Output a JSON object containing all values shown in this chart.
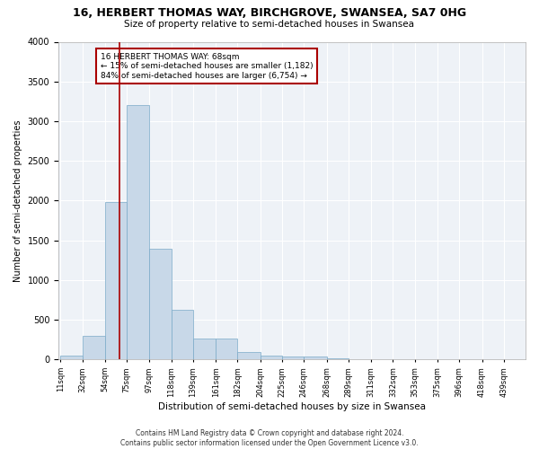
{
  "title": "16, HERBERT THOMAS WAY, BIRCHGROVE, SWANSEA, SA7 0HG",
  "subtitle": "Size of property relative to semi-detached houses in Swansea",
  "xlabel": "Distribution of semi-detached houses by size in Swansea",
  "ylabel": "Number of semi-detached properties",
  "footer_line1": "Contains HM Land Registry data © Crown copyright and database right 2024.",
  "footer_line2": "Contains public sector information licensed under the Open Government Licence v3.0.",
  "annotation_line1": "16 HERBERT THOMAS WAY: 68sqm",
  "annotation_line2": "← 15% of semi-detached houses are smaller (1,182)",
  "annotation_line3": "84% of semi-detached houses are larger (6,754) →",
  "property_size": 68,
  "bar_color": "#c8d8e8",
  "bar_edge_color": "#7aaac8",
  "vline_color": "#aa0000",
  "annotation_box_color": "#aa0000",
  "background_color": "#eef2f7",
  "grid_color": "#ffffff",
  "categories": [
    "11sqm",
    "32sqm",
    "54sqm",
    "75sqm",
    "97sqm",
    "118sqm",
    "139sqm",
    "161sqm",
    "182sqm",
    "204sqm",
    "225sqm",
    "246sqm",
    "268sqm",
    "289sqm",
    "311sqm",
    "332sqm",
    "353sqm",
    "375sqm",
    "396sqm",
    "418sqm",
    "439sqm"
  ],
  "bin_edges": [
    11,
    32,
    54,
    75,
    97,
    118,
    139,
    161,
    182,
    204,
    225,
    246,
    268,
    289,
    311,
    332,
    353,
    375,
    396,
    418,
    439,
    460
  ],
  "values": [
    50,
    300,
    1980,
    3200,
    1390,
    630,
    260,
    260,
    95,
    55,
    35,
    35,
    18,
    8,
    4,
    4,
    2,
    2,
    2,
    2,
    2
  ],
  "ylim": [
    0,
    4000
  ],
  "yticks": [
    0,
    500,
    1000,
    1500,
    2000,
    2500,
    3000,
    3500,
    4000
  ]
}
